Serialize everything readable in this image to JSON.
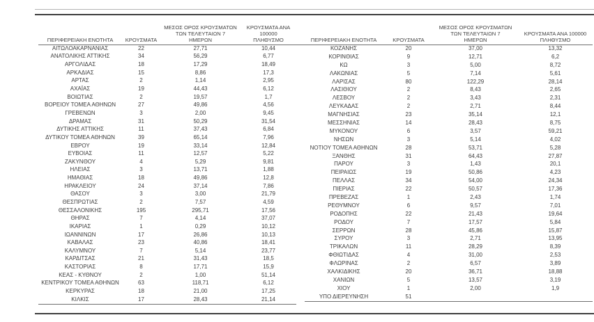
{
  "report": {
    "colors": {
      "text": "#3c3c3c",
      "rule_light": "#b3b3b3",
      "rule_dark": "#3d3d3d",
      "rule_mid": "#6e6e6e"
    },
    "tables": [
      {
        "headers": {
          "region": "ΠΕΡΙΦΕΡΕΙΑΚΗ ΕΝΟΤΗΤΑ",
          "cases": "ΚΡΟΥΣΜΑΤΑ",
          "avg7": "ΜΕΣΟΣ ΟΡΟΣ ΚΡΟΥΣΜΑΤΩΝ\nΤΩΝ ΤΕΛΕΥΤΑΙΩΝ 7\nΗΜΕΡΩΝ",
          "per100k": "ΚΡΟΥΣΜΑΤΑ ΑΝΑ 100000\nΠΛΗΘΥΣΜΟ"
        },
        "rows": [
          [
            "ΑΙΤΩΛΟΑΚΑΡΝΑΝΙΑΣ",
            "22",
            "27,71",
            "10,44"
          ],
          [
            "ΑΝΑΤΟΛΙΚΗΣ ΑΤΤΙΚΗΣ",
            "34",
            "56,29",
            "6,77"
          ],
          [
            "ΑΡΓΟΛΙΔΑΣ",
            "18",
            "17,29",
            "18,49"
          ],
          [
            "ΑΡΚΑΔΙΑΣ",
            "15",
            "8,86",
            "17,3"
          ],
          [
            "ΑΡΤΑΣ",
            "2",
            "1,14",
            "2,95"
          ],
          [
            "ΑΧΑΪΑΣ",
            "19",
            "44,43",
            "6,12"
          ],
          [
            "ΒΟΙΩΤΙΑΣ",
            "2",
            "19,57",
            "1,7"
          ],
          [
            "ΒΟΡΕΙΟΥ ΤΟΜΕΑ ΑΘΗΝΩΝ",
            "27",
            "49,86",
            "4,56"
          ],
          [
            "ΓΡΕΒΕΝΩΝ",
            "3",
            "2,00",
            "9,45"
          ],
          [
            "ΔΡΑΜΑΣ",
            "31",
            "50,29",
            "31,54"
          ],
          [
            "ΔΥΤΙΚΗΣ ΑΤΤΙΚΗΣ",
            "11",
            "37,43",
            "6,84"
          ],
          [
            "ΔΥΤΙΚΟΥ ΤΟΜΕΑ ΑΘΗΝΩΝ",
            "39",
            "65,14",
            "7,96"
          ],
          [
            "ΕΒΡΟΥ",
            "19",
            "33,14",
            "12,84"
          ],
          [
            "ΕΥΒΟΙΑΣ",
            "11",
            "12,57",
            "5,22"
          ],
          [
            "ΖΑΚΥΝΘΟΥ",
            "4",
            "5,29",
            "9,81"
          ],
          [
            "ΗΛΕΙΑΣ",
            "3",
            "13,71",
            "1,88"
          ],
          [
            "ΗΜΑΘΙΑΣ",
            "18",
            "49,86",
            "12,8"
          ],
          [
            "ΗΡΑΚΛΕΙΟΥ",
            "24",
            "37,14",
            "7,86"
          ],
          [
            "ΘΑΣΟΥ",
            "3",
            "3,00",
            "21,79"
          ],
          [
            "ΘΕΣΠΡΩΤΙΑΣ",
            "2",
            "7,57",
            "4,59"
          ],
          [
            "ΘΕΣΣΑΛΟΝΙΚΗΣ",
            "195",
            "295,71",
            "17,56"
          ],
          [
            "ΘΗΡΑΣ",
            "7",
            "4,14",
            "37,07"
          ],
          [
            "ΙΚΑΡΙΑΣ",
            "1",
            "0,29",
            "10,12"
          ],
          [
            "ΙΩΑΝΝΙΝΩΝ",
            "17",
            "26,86",
            "10,13"
          ],
          [
            "ΚΑΒΑΛΑΣ",
            "23",
            "40,86",
            "18,41"
          ],
          [
            "ΚΑΛΥΜΝΟΥ",
            "7",
            "5,14",
            "23,77"
          ],
          [
            "ΚΑΡΔΙΤΣΑΣ",
            "21",
            "31,43",
            "18,5"
          ],
          [
            "ΚΑΣΤΟΡΙΑΣ",
            "8",
            "17,71",
            "15,9"
          ],
          [
            "ΚΕΑΣ - ΚΥΘΝΟΥ",
            "2",
            "1,00",
            "51,14"
          ],
          [
            "ΚΕΝΤΡΙΚΟΥ ΤΟΜΕΑ ΑΘΗΝΩΝ",
            "63",
            "118,71",
            "6,12"
          ],
          [
            "ΚΕΡΚΥΡΑΣ",
            "18",
            "21,00",
            "17,25"
          ],
          [
            "ΚΙΛΚΙΣ",
            "17",
            "28,43",
            "21,14"
          ]
        ]
      },
      {
        "headers": {
          "region": "ΠΕΡΙΦΕΡΕΙΑΚΗ ΕΝΟΤΗΤΑ",
          "cases": "ΚΡΟΥΣΜΑΤΑ",
          "avg7": "ΜΕΣΟΣ ΟΡΟΣ ΚΡΟΥΣΜΑΤΩΝ\nΤΩΝ ΤΕΛΕΥΤΑΙΩΝ 7\nΗΜΕΡΩΝ",
          "per100k": "ΚΡΟΥΣΜΑΤΑ ΑΝΑ 100000\nΠΛΗΘΥΣΜΟ"
        },
        "rows": [
          [
            "ΚΟΖΑΝΗΣ",
            "20",
            "37,00",
            "13,32"
          ],
          [
            "ΚΟΡΙΝΘΙΑΣ",
            "9",
            "12,71",
            "6,2"
          ],
          [
            "ΚΩ",
            "3",
            "5,00",
            "8,72"
          ],
          [
            "ΛΑΚΩΝΙΑΣ",
            "5",
            "7,14",
            "5,61"
          ],
          [
            "ΛΑΡΙΣΑΣ",
            "80",
            "122,29",
            "28,14"
          ],
          [
            "ΛΑΣΙΘΙΟΥ",
            "2",
            "8,43",
            "2,65"
          ],
          [
            "ΛΕΣΒΟΥ",
            "2",
            "3,43",
            "2,31"
          ],
          [
            "ΛΕΥΚΑΔΑΣ",
            "2",
            "2,71",
            "8,44"
          ],
          [
            "ΜΑΓΝΗΣΙΑΣ",
            "23",
            "35,14",
            "12,1"
          ],
          [
            "ΜΕΣΣΗΝΙΑΣ",
            "14",
            "28,43",
            "8,75"
          ],
          [
            "ΜΥΚΟΝΟΥ",
            "6",
            "3,57",
            "59,21"
          ],
          [
            "ΝΗΣΩΝ",
            "3",
            "5,14",
            "4,02"
          ],
          [
            "ΝΟΤΙΟΥ ΤΟΜΕΑ ΑΘΗΝΩΝ",
            "28",
            "53,71",
            "5,28"
          ],
          [
            "ΞΑΝΘΗΣ",
            "31",
            "64,43",
            "27,87"
          ],
          [
            "ΠΑΡΟΥ",
            "3",
            "1,43",
            "20,1"
          ],
          [
            "ΠΕΙΡΑΙΩΣ",
            "19",
            "50,86",
            "4,23"
          ],
          [
            "ΠΕΛΛΑΣ",
            "34",
            "54,00",
            "24,34"
          ],
          [
            "ΠΙΕΡΙΑΣ",
            "22",
            "50,57",
            "17,36"
          ],
          [
            "ΠΡΕΒΕΖΑΣ",
            "1",
            "2,43",
            "1,74"
          ],
          [
            "ΡΕΘΥΜΝΟΥ",
            "6",
            "9,57",
            "7,01"
          ],
          [
            "ΡΟΔΟΠΗΣ",
            "22",
            "21,43",
            "19,64"
          ],
          [
            "ΡΟΔΟΥ",
            "7",
            "17,57",
            "5,84"
          ],
          [
            "ΣΕΡΡΩΝ",
            "28",
            "45,86",
            "15,87"
          ],
          [
            "ΣΥΡΟΥ",
            "3",
            "2,71",
            "13,95"
          ],
          [
            "ΤΡΙΚΑΛΩΝ",
            "11",
            "28,29",
            "8,39"
          ],
          [
            "ΦΘΙΩΤΙΔΑΣ",
            "4",
            "31,00",
            "2,53"
          ],
          [
            "ΦΛΩΡΙΝΑΣ",
            "2",
            "6,57",
            "3,89"
          ],
          [
            "ΧΑΛΚΙΔΙΚΗΣ",
            "20",
            "36,71",
            "18,88"
          ],
          [
            "ΧΑΝΙΩΝ",
            "5",
            "13,57",
            "3,19"
          ],
          [
            "ΧΙΟΥ",
            "1",
            "2,00",
            "1,9"
          ],
          [
            "ΥΠΟ ΔΙΕΡΕΥΝΗΣΗ",
            "51",
            "",
            ""
          ]
        ]
      }
    ]
  }
}
